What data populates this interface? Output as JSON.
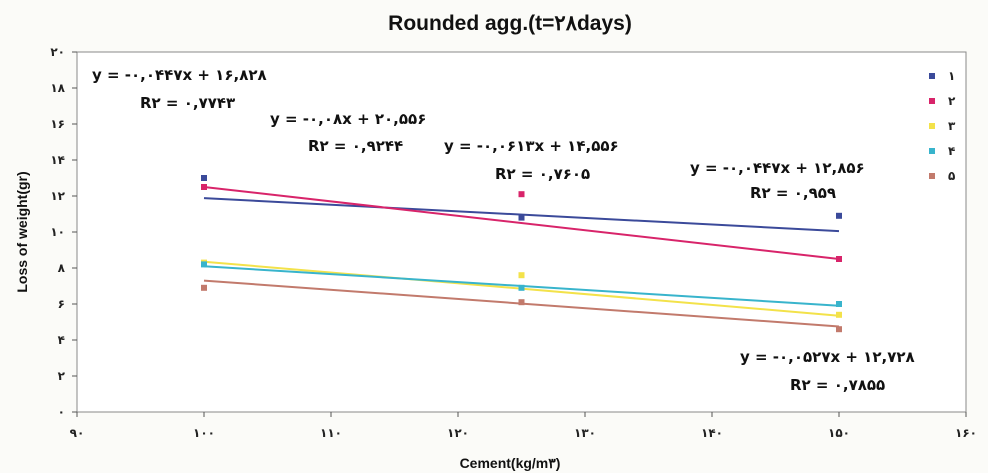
{
  "chart_data": {
    "type": "scatter",
    "title": "Rounded agg.(t=۲۸days)",
    "xlabel": "Cement(kg/m۳)",
    "ylabel": "Loss of weight(gr)",
    "xlim": [
      90,
      160
    ],
    "ylim": [
      0,
      20
    ],
    "x_ticks": [
      90,
      100,
      110,
      120,
      130,
      140,
      150,
      160
    ],
    "x_tick_labels": [
      "۹۰",
      "۱۰۰",
      "۱۱۰",
      "۱۲۰",
      "۱۳۰",
      "۱۴۰",
      "۱۵۰",
      "۱۶۰"
    ],
    "y_ticks": [
      0,
      2,
      4,
      6,
      8,
      10,
      12,
      14,
      16,
      18,
      20
    ],
    "y_tick_labels": [
      "۰",
      "۲",
      "۴",
      "۶",
      "۸",
      "۱۰",
      "۱۲",
      "۱۴",
      "۱۶",
      "۱۸",
      "۲۰"
    ],
    "grid": false,
    "legend_position": "right",
    "series": [
      {
        "name": "۱",
        "color": "#3b4a9a",
        "x": [
          100,
          125,
          150
        ],
        "y": [
          13.0,
          10.8,
          10.9
        ]
      },
      {
        "name": "۲",
        "color": "#d8246a",
        "x": [
          100,
          125,
          150
        ],
        "y": [
          12.5,
          12.1,
          8.5
        ]
      },
      {
        "name": "۳",
        "color": "#f3e24a",
        "x": [
          100,
          125,
          150
        ],
        "y": [
          8.3,
          7.6,
          5.4
        ]
      },
      {
        "name": "۴",
        "color": "#38b4cc",
        "x": [
          100,
          125,
          150
        ],
        "y": [
          8.2,
          6.9,
          6.0
        ]
      },
      {
        "name": "۵",
        "color": "#c27a6c",
        "x": [
          100,
          125,
          150
        ],
        "y": [
          6.9,
          6.1,
          4.6
        ]
      }
    ],
    "trendlines": [
      {
        "series": "۱",
        "x": [
          100,
          150
        ],
        "y": [
          11.88,
          10.05
        ]
      },
      {
        "series": "۲",
        "x": [
          100,
          150
        ],
        "y": [
          12.5,
          8.5
        ]
      },
      {
        "series": "۳",
        "x": [
          100,
          150
        ],
        "y": [
          8.35,
          5.35
        ]
      },
      {
        "series": "۴",
        "x": [
          100,
          150
        ],
        "y": [
          8.1,
          5.9
        ]
      },
      {
        "series": "۵",
        "x": [
          100,
          150
        ],
        "y": [
          7.3,
          4.75
        ]
      }
    ],
    "annotations": [
      {
        "line1": "y = -۰,۰۴۴۷x + ۱۶,۸۲۸",
        "line2": "R۲ = ۰,۷۷۴۳"
      },
      {
        "line1": "y = -۰,۰۸x + ۲۰,۵۵۶",
        "line2": "R۲ = ۰,۹۲۴۴"
      },
      {
        "line1": "y = -۰,۰۶۱۳x + ۱۴,۵۵۶",
        "line2": "R۲ = ۰,۷۶۰۵"
      },
      {
        "line1": "y = -۰,۰۴۴۷x + ۱۲,۸۵۶",
        "line2": "R۲ = ۰,۹۵۹"
      },
      {
        "line1": "y = -۰,۰۵۲۷x + ۱۲,۷۲۸",
        "line2": "R۲ = ۰,۷۸۵۵"
      }
    ]
  }
}
